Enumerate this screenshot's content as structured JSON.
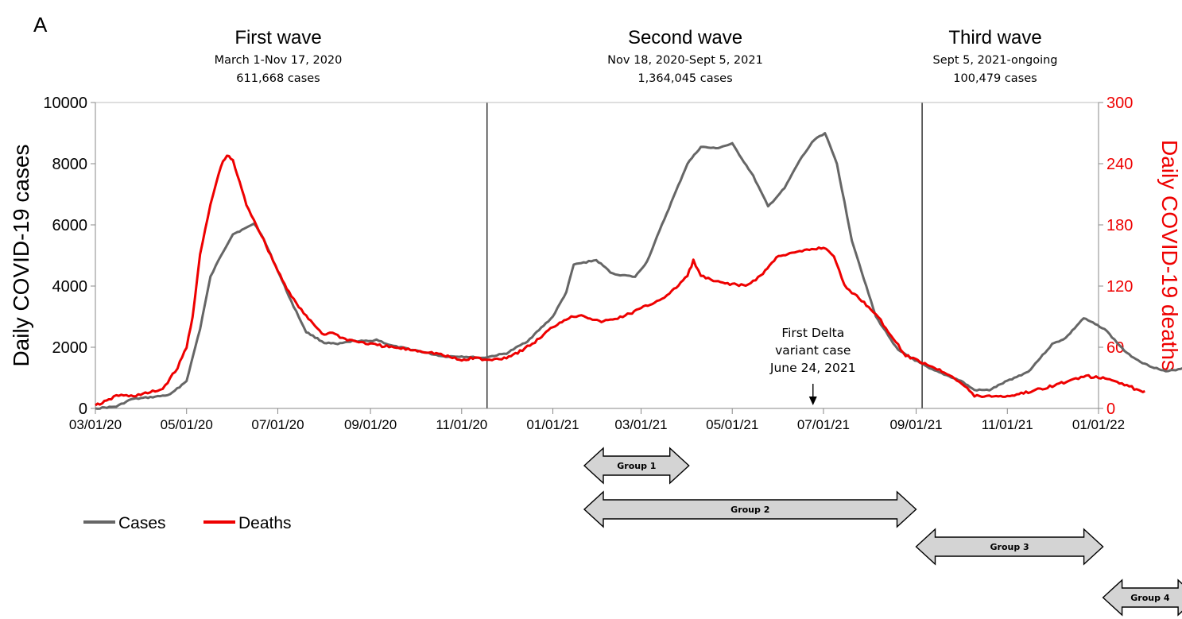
{
  "panel_label": "A",
  "chart_data": {
    "type": "line",
    "x_range": [
      "03/01/20",
      "01/01/22"
    ],
    "x_tick_labels": [
      "03/01/20",
      "05/01/20",
      "07/01/20",
      "09/01/20",
      "11/01/20",
      "01/01/21",
      "03/01/21",
      "05/01/21",
      "07/01/21",
      "09/01/21",
      "11/01/21",
      "01/01/22"
    ],
    "ylabel_left": "Daily COVID-19 cases",
    "ylabel_right": "Daily COVID-19 deaths",
    "ylim_left": [
      0,
      10000
    ],
    "ylim_right": [
      0,
      300
    ],
    "y_ticks_left": [
      "0",
      "2000",
      "4000",
      "6000",
      "8000",
      "10000"
    ],
    "y_ticks_right": [
      "0",
      "60",
      "120",
      "180",
      "240",
      "300"
    ],
    "grid": false,
    "legend_position": "bottom-left",
    "colors": {
      "cases": "#666666",
      "deaths": "#ee0000",
      "right_axis": "#ee0000"
    },
    "series": [
      {
        "name": "Cases",
        "axis": "left",
        "color": "#666666",
        "points": [
          [
            "2020-03-01",
            0
          ],
          [
            "2020-03-15",
            60
          ],
          [
            "2020-03-25",
            300
          ],
          [
            "2020-04-10",
            380
          ],
          [
            "2020-04-20",
            450
          ],
          [
            "2020-05-01",
            900
          ],
          [
            "2020-05-10",
            2600
          ],
          [
            "2020-05-17",
            4300
          ],
          [
            "2020-05-24",
            5000
          ],
          [
            "2020-06-01",
            5700
          ],
          [
            "2020-06-10",
            5900
          ],
          [
            "2020-06-15",
            6050
          ],
          [
            "2020-06-20",
            5700
          ],
          [
            "2020-07-01",
            4500
          ],
          [
            "2020-07-10",
            3500
          ],
          [
            "2020-07-20",
            2500
          ],
          [
            "2020-08-01",
            2150
          ],
          [
            "2020-08-10",
            2100
          ],
          [
            "2020-08-20",
            2200
          ],
          [
            "2020-09-01",
            2200
          ],
          [
            "2020-09-05",
            2250
          ],
          [
            "2020-09-15",
            2050
          ],
          [
            "2020-10-01",
            1900
          ],
          [
            "2020-10-10",
            1800
          ],
          [
            "2020-10-20",
            1700
          ],
          [
            "2020-11-01",
            1700
          ],
          [
            "2020-11-15",
            1650
          ],
          [
            "2020-12-01",
            1800
          ],
          [
            "2020-12-15",
            2200
          ],
          [
            "2021-01-01",
            3000
          ],
          [
            "2021-01-10",
            3800
          ],
          [
            "2021-01-15",
            4700
          ],
          [
            "2021-01-30",
            4850
          ],
          [
            "2021-02-10",
            4400
          ],
          [
            "2021-02-25",
            4300
          ],
          [
            "2021-03-05",
            4800
          ],
          [
            "2021-03-15",
            6000
          ],
          [
            "2021-04-01",
            8000
          ],
          [
            "2021-04-10",
            8550
          ],
          [
            "2021-04-20",
            8500
          ],
          [
            "2021-05-01",
            8650
          ],
          [
            "2021-05-15",
            7600
          ],
          [
            "2021-05-25",
            6600
          ],
          [
            "2021-06-05",
            7200
          ],
          [
            "2021-06-15",
            8100
          ],
          [
            "2021-06-25",
            8800
          ],
          [
            "2021-07-02",
            9000
          ],
          [
            "2021-07-10",
            8000
          ],
          [
            "2021-07-20",
            5500
          ],
          [
            "2021-08-05",
            3000
          ],
          [
            "2021-08-20",
            1900
          ],
          [
            "2021-09-10",
            1300
          ],
          [
            "2021-10-01",
            900
          ],
          [
            "2021-10-10",
            600
          ],
          [
            "2021-10-20",
            600
          ],
          [
            "2021-11-01",
            900
          ],
          [
            "2021-11-15",
            1200
          ],
          [
            "2021-12-01",
            2100
          ],
          [
            "2021-12-10",
            2300
          ],
          [
            "2021-12-22",
            2950
          ],
          [
            "2022-01-05",
            2600
          ],
          [
            "2022-01-20",
            1800
          ],
          [
            "2022-02-01",
            1450
          ],
          [
            "2022-02-15",
            1200
          ],
          [
            "2022-02-25",
            1300
          ],
          [
            "2022-03-10",
            1500
          ]
        ]
      },
      {
        "name": "Deaths",
        "axis": "right",
        "color": "#ee0000",
        "points": [
          [
            "2020-03-01",
            3
          ],
          [
            "2020-03-10",
            8
          ],
          [
            "2020-03-15",
            13
          ],
          [
            "2020-03-25",
            12
          ],
          [
            "2020-04-05",
            15
          ],
          [
            "2020-04-15",
            19
          ],
          [
            "2020-04-25",
            40
          ],
          [
            "2020-05-01",
            60
          ],
          [
            "2020-05-05",
            90
          ],
          [
            "2020-05-10",
            150
          ],
          [
            "2020-05-17",
            200
          ],
          [
            "2020-05-24",
            238
          ],
          [
            "2020-05-28",
            248
          ],
          [
            "2020-06-01",
            243
          ],
          [
            "2020-06-10",
            200
          ],
          [
            "2020-06-20",
            170
          ],
          [
            "2020-07-01",
            135
          ],
          [
            "2020-07-10",
            110
          ],
          [
            "2020-07-20",
            90
          ],
          [
            "2020-08-01",
            72
          ],
          [
            "2020-08-05",
            75
          ],
          [
            "2020-08-15",
            68
          ],
          [
            "2020-09-01",
            63
          ],
          [
            "2020-09-15",
            60
          ],
          [
            "2020-10-01",
            57
          ],
          [
            "2020-10-15",
            54
          ],
          [
            "2020-11-01",
            47
          ],
          [
            "2020-11-10",
            50
          ],
          [
            "2020-11-18",
            47
          ],
          [
            "2020-12-01",
            50
          ],
          [
            "2020-12-10",
            56
          ],
          [
            "2020-12-20",
            65
          ],
          [
            "2021-01-01",
            80
          ],
          [
            "2021-01-10",
            88
          ],
          [
            "2021-01-20",
            92
          ],
          [
            "2021-02-01",
            85
          ],
          [
            "2021-02-10",
            87
          ],
          [
            "2021-02-20",
            92
          ],
          [
            "2021-03-01",
            98
          ],
          [
            "2021-03-10",
            104
          ],
          [
            "2021-03-20",
            112
          ],
          [
            "2021-04-01",
            130
          ],
          [
            "2021-04-05",
            145
          ],
          [
            "2021-04-10",
            130
          ],
          [
            "2021-04-20",
            124
          ],
          [
            "2021-05-01",
            122
          ],
          [
            "2021-05-10",
            120
          ],
          [
            "2021-05-20",
            130
          ],
          [
            "2021-06-01",
            150
          ],
          [
            "2021-06-10",
            152
          ],
          [
            "2021-06-20",
            155
          ],
          [
            "2021-07-01",
            158
          ],
          [
            "2021-07-08",
            150
          ],
          [
            "2021-07-15",
            120
          ],
          [
            "2021-07-25",
            108
          ],
          [
            "2021-08-05",
            93
          ],
          [
            "2021-08-15",
            72
          ],
          [
            "2021-08-25",
            52
          ],
          [
            "2021-09-10",
            42
          ],
          [
            "2021-09-25",
            32
          ],
          [
            "2021-10-05",
            20
          ],
          [
            "2021-10-10",
            12
          ],
          [
            "2021-10-20",
            12
          ],
          [
            "2021-11-01",
            12
          ],
          [
            "2021-11-15",
            16
          ],
          [
            "2021-12-01",
            22
          ],
          [
            "2021-12-15",
            28
          ],
          [
            "2021-12-22",
            32
          ],
          [
            "2022-01-01",
            30
          ],
          [
            "2022-01-10",
            28
          ],
          [
            "2022-01-20",
            23
          ],
          [
            "2022-01-28",
            17
          ],
          [
            "2022-02-01",
            17
          ]
        ]
      }
    ],
    "wave_dividers": [
      "2020-11-18",
      "2021-09-05"
    ],
    "waves": [
      {
        "title": "First wave",
        "dates": "March 1-Nov 17, 2020",
        "cases": "611,668 cases"
      },
      {
        "title": "Second wave",
        "dates": "Nov 18, 2020-Sept 5, 2021",
        "cases": "1,364,045 cases"
      },
      {
        "title": "Third wave",
        "dates": "Sept 5, 2021-ongoing",
        "cases": "100,479 cases"
      }
    ],
    "annotation": {
      "lines": [
        "First Delta",
        "variant case",
        "June 24, 2021"
      ],
      "date": "2021-06-24"
    },
    "groups": [
      {
        "label": "Group 1",
        "start": "2021-01-22",
        "end": "2021-04-02"
      },
      {
        "label": "Group 2",
        "start": "2021-01-22",
        "end": "2021-09-01"
      },
      {
        "label": "Group 3",
        "start": "2021-09-01",
        "end": "2022-01-04"
      },
      {
        "label": "Group 4",
        "start": "2022-01-04",
        "end": "2022-03-08"
      }
    ],
    "legend": [
      {
        "label": "Cases",
        "color": "#666666"
      },
      {
        "label": "Deaths",
        "color": "#ee0000"
      }
    ]
  }
}
